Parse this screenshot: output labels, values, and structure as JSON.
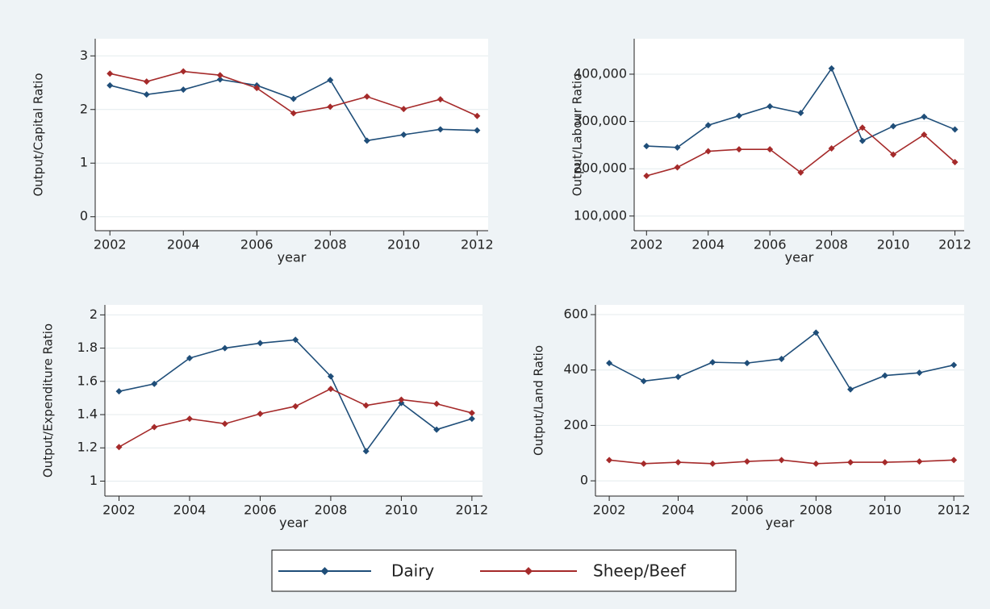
{
  "legend": {
    "labels": [
      "Dairy",
      "Sheep/Beef"
    ],
    "colors": [
      "#1f4e79",
      "#a52a2a"
    ]
  },
  "chart_data": [
    {
      "type": "line",
      "ylabel": "Output/Capital Ratio",
      "xlabel": "year",
      "x": [
        2002,
        2003,
        2004,
        2005,
        2006,
        2007,
        2008,
        2009,
        2010,
        2011,
        2012
      ],
      "series": [
        {
          "values": [
            2.45,
            2.28,
            2.37,
            2.56,
            2.45,
            2.2,
            2.55,
            1.42,
            1.53,
            1.63,
            1.61
          ]
        },
        {
          "values": [
            2.67,
            2.52,
            2.71,
            2.64,
            2.4,
            1.93,
            2.05,
            2.24,
            2.01,
            2.19,
            1.88
          ]
        }
      ],
      "xlim": [
        2001.6,
        2012.3
      ],
      "xticks": [
        2002,
        2004,
        2006,
        2008,
        2010,
        2012
      ],
      "ylim": [
        -0.26,
        3.32
      ],
      "yticks": [
        0,
        1,
        2,
        3
      ],
      "grid": true
    },
    {
      "type": "line",
      "ylabel": "Output/Labour Ratio",
      "xlabel": "year",
      "x": [
        2002,
        2003,
        2004,
        2005,
        2006,
        2007,
        2008,
        2009,
        2010,
        2011,
        2012
      ],
      "series": [
        {
          "values": [
            248000,
            245000,
            292000,
            312000,
            332000,
            318000,
            412000,
            259000,
            290000,
            310000,
            283000
          ]
        },
        {
          "values": [
            185000,
            203000,
            237000,
            241000,
            241000,
            192000,
            243000,
            287000,
            230000,
            272000,
            214000
          ]
        }
      ],
      "xlim": [
        2001.6,
        2012.3
      ],
      "xticks": [
        2002,
        2004,
        2006,
        2008,
        2010,
        2012
      ],
      "ylim": [
        69000,
        475000
      ],
      "yticks": [
        {
          "value": 100000,
          "label": "100,000"
        },
        {
          "value": 200000,
          "label": "200,000"
        },
        {
          "value": 300000,
          "label": "300,000"
        },
        {
          "value": 400000,
          "label": "400,000"
        }
      ],
      "grid": true
    },
    {
      "type": "line",
      "ylabel": "Output/Expenditure Ratio",
      "xlabel": "year",
      "x": [
        2002,
        2003,
        2004,
        2005,
        2006,
        2007,
        2008,
        2009,
        2010,
        2011,
        2012
      ],
      "series": [
        {
          "values": [
            1.54,
            1.585,
            1.74,
            1.8,
            1.83,
            1.85,
            1.63,
            1.18,
            1.47,
            1.31,
            1.375
          ]
        },
        {
          "values": [
            1.205,
            1.325,
            1.375,
            1.345,
            1.405,
            1.45,
            1.555,
            1.455,
            1.49,
            1.465,
            1.41
          ]
        }
      ],
      "xlim": [
        2001.6,
        2012.3
      ],
      "xticks": [
        2002,
        2004,
        2006,
        2008,
        2010,
        2012
      ],
      "ylim": [
        0.91,
        2.06
      ],
      "yticks": [
        1,
        1.2,
        1.4,
        1.6,
        1.8,
        2
      ],
      "grid": true
    },
    {
      "type": "line",
      "ylabel": "Output/Land Ratio",
      "xlabel": "year",
      "x": [
        2002,
        2003,
        2004,
        2005,
        2006,
        2007,
        2008,
        2009,
        2010,
        2011,
        2012
      ],
      "series": [
        {
          "values": [
            425,
            360,
            375,
            428,
            425,
            440,
            535,
            330,
            380,
            390,
            418
          ]
        },
        {
          "values": [
            75,
            62,
            67,
            62,
            70,
            75,
            62,
            67,
            67,
            70,
            75
          ]
        }
      ],
      "xlim": [
        2001.6,
        2012.3
      ],
      "xticks": [
        2002,
        2004,
        2006,
        2008,
        2010,
        2012
      ],
      "ylim": [
        -55,
        635
      ],
      "yticks": [
        0,
        200,
        400,
        600
      ],
      "grid": true
    }
  ]
}
